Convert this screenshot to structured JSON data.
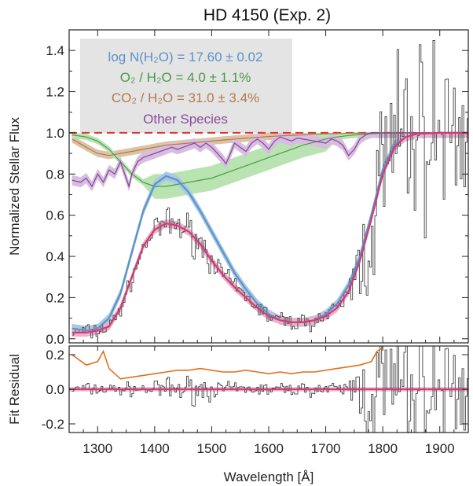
{
  "chart_data": {
    "type": "line",
    "title": "HD 4150 (Exp. 2)",
    "xlabel": "Wavelength [Å]",
    "colors": {
      "observed": "#444444",
      "h2o": "#5b93c8",
      "h2o_band": "#a9c8e6",
      "model": "#cc3d7a",
      "model_band": "#ebb3c9",
      "o2": "#4a9a4a",
      "o2_band": "#b9e3b0",
      "co2": "#b07a4c",
      "co2_band": "#dcc3a8",
      "other": "#8a4a9a",
      "other_band": "#d7bde0",
      "residual_curve": "#e36e1c",
      "continuum": "#dd3333",
      "legend_box": "#e4e4e4"
    },
    "legend": {
      "h2o": "log N(H₂O) = 17.60 ± 0.02",
      "o2": "O₂ / H₂O =   4.0 ±  1.1%",
      "co2": "CO₂ / H₂O =  31.0 ±  3.4%",
      "other": "Other Species"
    },
    "panels": [
      {
        "name": "flux",
        "ylabel": "Normalized Stellar Flux",
        "xlim": [
          1250,
          1950
        ],
        "ylim": [
          -0.02,
          1.5
        ],
        "yticks": [
          0.0,
          0.2,
          0.4,
          0.6,
          0.8,
          1.0,
          1.2,
          1.4
        ],
        "ytick_labels": [
          "0.0",
          "0.2",
          "0.4",
          "0.6",
          "0.8",
          "1.0",
          "1.2",
          "1.4"
        ],
        "continuum_level": 1.0,
        "series": {
          "h2o_fit": {
            "x": [
              1255,
              1280,
              1300,
              1320,
              1340,
              1360,
              1380,
              1400,
              1420,
              1440,
              1460,
              1480,
              1500,
              1520,
              1540,
              1560,
              1580,
              1600,
              1620,
              1640,
              1660,
              1680,
              1700,
              1720,
              1740,
              1760,
              1780,
              1800,
              1820,
              1840,
              1860,
              1900,
              1950
            ],
            "y": [
              0.05,
              0.04,
              0.05,
              0.1,
              0.22,
              0.42,
              0.62,
              0.75,
              0.79,
              0.77,
              0.71,
              0.62,
              0.52,
              0.42,
              0.32,
              0.24,
              0.17,
              0.12,
              0.09,
              0.08,
              0.08,
              0.09,
              0.12,
              0.17,
              0.26,
              0.4,
              0.6,
              0.82,
              0.94,
              0.98,
              0.995,
              1.0,
              1.0
            ]
          },
          "combined_fit": {
            "x": [
              1255,
              1280,
              1300,
              1320,
              1340,
              1360,
              1380,
              1400,
              1420,
              1440,
              1460,
              1480,
              1500,
              1520,
              1540,
              1560,
              1580,
              1600,
              1620,
              1640,
              1660,
              1680,
              1700,
              1720,
              1740,
              1760,
              1780,
              1800,
              1820,
              1840,
              1860,
              1900,
              1950
            ],
            "y": [
              0.03,
              0.03,
              0.04,
              0.06,
              0.15,
              0.3,
              0.45,
              0.53,
              0.56,
              0.55,
              0.52,
              0.46,
              0.38,
              0.31,
              0.25,
              0.2,
              0.15,
              0.11,
              0.09,
              0.08,
              0.08,
              0.09,
              0.11,
              0.15,
              0.23,
              0.38,
              0.58,
              0.8,
              0.93,
              0.98,
              0.995,
              1.0,
              1.0
            ]
          },
          "o2": {
            "x": [
              1255,
              1280,
              1300,
              1320,
              1340,
              1360,
              1380,
              1400,
              1420,
              1440,
              1460,
              1480,
              1500,
              1520,
              1540,
              1560,
              1580,
              1600,
              1620,
              1640,
              1660,
              1680,
              1700,
              1720,
              1740,
              1760,
              1780,
              1800,
              1850,
              1950
            ],
            "y": [
              0.99,
              0.98,
              0.96,
              0.92,
              0.86,
              0.8,
              0.76,
              0.74,
              0.74,
              0.75,
              0.76,
              0.77,
              0.78,
              0.8,
              0.82,
              0.84,
              0.86,
              0.88,
              0.9,
              0.92,
              0.94,
              0.955,
              0.97,
              0.98,
              0.987,
              0.992,
              0.996,
              0.998,
              1.0,
              1.0
            ]
          },
          "co2": {
            "x": [
              1255,
              1280,
              1300,
              1320,
              1340,
              1360,
              1380,
              1400,
              1420,
              1440,
              1460,
              1480,
              1500,
              1520,
              1540,
              1560,
              1580,
              1600,
              1620,
              1640,
              1660,
              1680,
              1700,
              1740,
              1800,
              1950
            ],
            "y": [
              0.97,
              0.93,
              0.9,
              0.89,
              0.9,
              0.91,
              0.92,
              0.93,
              0.94,
              0.945,
              0.95,
              0.955,
              0.96,
              0.965,
              0.97,
              0.974,
              0.978,
              0.982,
              0.985,
              0.988,
              0.99,
              0.993,
              0.995,
              0.998,
              1.0,
              1.0
            ]
          },
          "other": {
            "x": [
              1255,
              1270,
              1280,
              1290,
              1300,
              1310,
              1320,
              1330,
              1340,
              1350,
              1355,
              1360,
              1370,
              1380,
              1390,
              1400,
              1410,
              1420,
              1430,
              1440,
              1450,
              1460,
              1470,
              1480,
              1490,
              1500,
              1510,
              1520,
              1525,
              1530,
              1540,
              1550,
              1560,
              1570,
              1580,
              1590,
              1600,
              1610,
              1620,
              1630,
              1640,
              1650,
              1660,
              1670,
              1680,
              1690,
              1700,
              1710,
              1720,
              1730,
              1740,
              1750,
              1760,
              1770,
              1780,
              1800,
              1850,
              1950
            ],
            "y": [
              0.77,
              0.76,
              0.78,
              0.74,
              0.8,
              0.76,
              0.82,
              0.8,
              0.86,
              0.78,
              0.74,
              0.8,
              0.86,
              0.88,
              0.89,
              0.9,
              0.91,
              0.92,
              0.93,
              0.92,
              0.93,
              0.94,
              0.95,
              0.93,
              0.95,
              0.93,
              0.9,
              0.87,
              0.85,
              0.88,
              0.95,
              0.93,
              0.91,
              0.95,
              0.97,
              0.95,
              0.92,
              0.96,
              0.98,
              0.97,
              0.96,
              0.975,
              0.97,
              0.965,
              0.96,
              0.955,
              0.95,
              0.97,
              0.96,
              0.94,
              0.89,
              0.92,
              0.97,
              0.99,
              1.0,
              1.0,
              1.0,
              1.0
            ]
          }
        }
      },
      {
        "name": "residual",
        "ylabel": "Fit Residual",
        "ylim": [
          -0.25,
          0.25
        ],
        "yticks": [
          -0.2,
          0.0,
          0.2
        ],
        "ytick_labels": [
          "-0.2",
          "0.0",
          "0.2"
        ],
        "series": {
          "uncertainty": {
            "x": [
              1255,
              1280,
              1300,
              1310,
              1320,
              1340,
              1360,
              1380,
              1400,
              1420,
              1440,
              1460,
              1480,
              1500,
              1520,
              1540,
              1560,
              1580,
              1600,
              1620,
              1640,
              1660,
              1680,
              1700,
              1720,
              1740,
              1760,
              1780,
              1790,
              1800
            ],
            "y": [
              0.2,
              0.14,
              0.16,
              0.22,
              0.12,
              0.06,
              0.07,
              0.08,
              0.09,
              0.1,
              0.11,
              0.11,
              0.12,
              0.11,
              0.1,
              0.1,
              0.11,
              0.1,
              0.09,
              0.1,
              0.09,
              0.1,
              0.1,
              0.11,
              0.12,
              0.13,
              0.14,
              0.16,
              0.22,
              0.24
            ]
          }
        }
      }
    ],
    "xticks": [
      1300,
      1400,
      1500,
      1600,
      1700,
      1800,
      1900
    ],
    "xtick_labels": [
      "1300",
      "1400",
      "1500",
      "1600",
      "1700",
      "1800",
      "1900"
    ]
  }
}
